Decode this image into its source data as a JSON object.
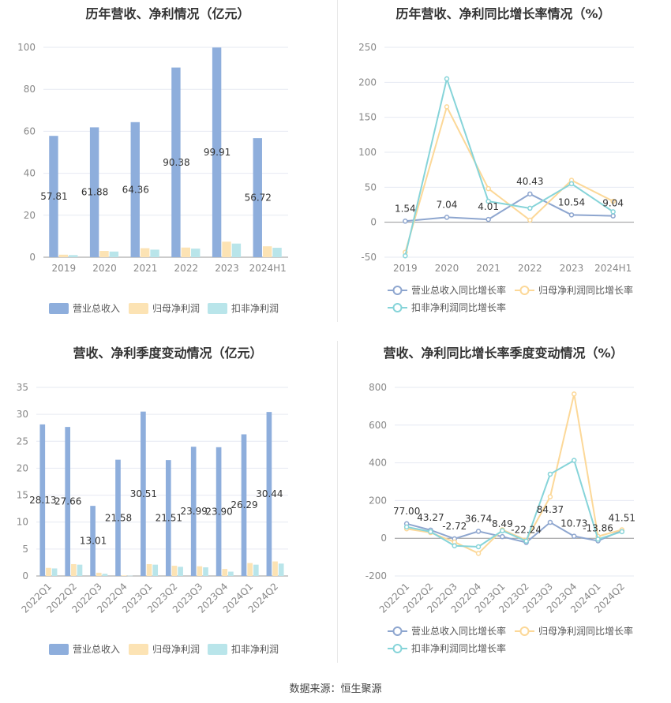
{
  "source": "数据来源：恒生聚源",
  "colors": {
    "revenue": "#8EAEDC",
    "netprofit": "#FCE3B4",
    "deducted": "#B9E5EA",
    "revenue_line": "#8EA6CF",
    "netprofit_line": "#FCD898",
    "deducted_line": "#86D4D9",
    "grid": "#E6E9F2",
    "axis_text": "#888888"
  },
  "chart_data": [
    {
      "id": "annual-amount",
      "type": "bar",
      "title": "历年营收、净利情况（亿元）",
      "categories": [
        "2019",
        "2020",
        "2021",
        "2022",
        "2023",
        "2024H1"
      ],
      "ylim": [
        0,
        100
      ],
      "yticks": [
        0,
        20,
        40,
        60,
        80,
        100
      ],
      "series": [
        {
          "name": "营业总收入",
          "values": [
            57.81,
            61.88,
            64.36,
            90.38,
            99.91,
            56.72
          ],
          "labels": [
            "57.81",
            "61.88",
            "64.36",
            "90.38",
            "99.91",
            "56.72"
          ]
        },
        {
          "name": "归母净利润",
          "values": [
            1.2,
            3.0,
            4.3,
            4.6,
            7.4,
            5.2
          ]
        },
        {
          "name": "扣非净利润",
          "values": [
            1.0,
            2.7,
            3.6,
            4.1,
            6.5,
            4.5
          ]
        }
      ],
      "legend": "bottom"
    },
    {
      "id": "annual-growth",
      "type": "line",
      "title": "历年营收、净利同比增长率情况（%）",
      "categories": [
        "2019",
        "2020",
        "2021",
        "2022",
        "2023",
        "2024H1"
      ],
      "ylim": [
        -50,
        250
      ],
      "yticks": [
        -50,
        0,
        50,
        100,
        150,
        200,
        250
      ],
      "series": [
        {
          "name": "营业总收入同比增长率",
          "values": [
            1.54,
            7.04,
            4.01,
            40.43,
            10.54,
            9.04
          ],
          "labels": [
            "1.54",
            "7.04",
            "4.01",
            "40.43",
            "10.54",
            "9.04"
          ]
        },
        {
          "name": "归母净利润同比增长率",
          "values": [
            -43,
            165,
            48,
            3,
            60,
            30
          ]
        },
        {
          "name": "扣非净利润同比增长率",
          "values": [
            -48,
            205,
            30,
            20,
            55,
            15
          ]
        }
      ],
      "legend": "bottom"
    },
    {
      "id": "quarter-amount",
      "type": "bar",
      "title": "营收、净利季度变动情况（亿元）",
      "categories": [
        "2022Q1",
        "2022Q2",
        "2022Q3",
        "2022Q4",
        "2023Q1",
        "2023Q2",
        "2023Q3",
        "2023Q4",
        "2024Q1",
        "2024Q2"
      ],
      "ylim": [
        0,
        35
      ],
      "yticks": [
        0,
        5,
        10,
        15,
        20,
        25,
        30,
        35
      ],
      "series": [
        {
          "name": "营业总收入",
          "values": [
            28.13,
            27.66,
            13.01,
            21.58,
            30.51,
            21.51,
            23.99,
            23.9,
            26.29,
            30.44
          ],
          "labels": [
            "28.13",
            "27.66",
            "13.01",
            "21.58",
            "30.51",
            "21.51",
            "23.99",
            "23.90",
            "26.29",
            "30.44"
          ]
        },
        {
          "name": "归母净利润",
          "values": [
            1.5,
            2.2,
            0.6,
            0.1,
            2.2,
            1.9,
            1.8,
            1.3,
            2.4,
            2.7
          ]
        },
        {
          "name": "扣非净利润",
          "values": [
            1.4,
            2.1,
            0.4,
            0.05,
            2.1,
            1.7,
            1.6,
            0.8,
            2.1,
            2.3
          ]
        }
      ],
      "legend": "bottom"
    },
    {
      "id": "quarter-growth",
      "type": "line",
      "title": "营收、净利同比增长率季度变动情况（%）",
      "categories": [
        "2022Q1",
        "2022Q2",
        "2022Q3",
        "2022Q4",
        "2023Q1",
        "2023Q2",
        "2023Q3",
        "2023Q4",
        "2024Q1",
        "2024Q2"
      ],
      "ylim": [
        -200,
        800
      ],
      "yticks": [
        -200,
        0,
        200,
        400,
        600,
        800
      ],
      "series": [
        {
          "name": "营业总收入同比增长率",
          "values": [
            77.0,
            43.27,
            -2.72,
            36.74,
            8.49,
            -22.24,
            84.37,
            10.73,
            -13.86,
            41.51
          ],
          "labels": [
            "77.00",
            "43.27",
            "-2.72",
            "36.74",
            "8.49",
            "-22.24",
            "84.37",
            "10.73",
            "-13.86",
            "41.51"
          ]
        },
        {
          "name": "归母净利润同比增长率",
          "values": [
            50,
            30,
            -20,
            -80,
            45,
            -10,
            220,
            765,
            10,
            45
          ]
        },
        {
          "name": "扣非净利润同比增长率",
          "values": [
            60,
            35,
            -40,
            -45,
            40,
            -15,
            340,
            413,
            -5,
            35
          ]
        }
      ],
      "legend": "bottom"
    }
  ]
}
